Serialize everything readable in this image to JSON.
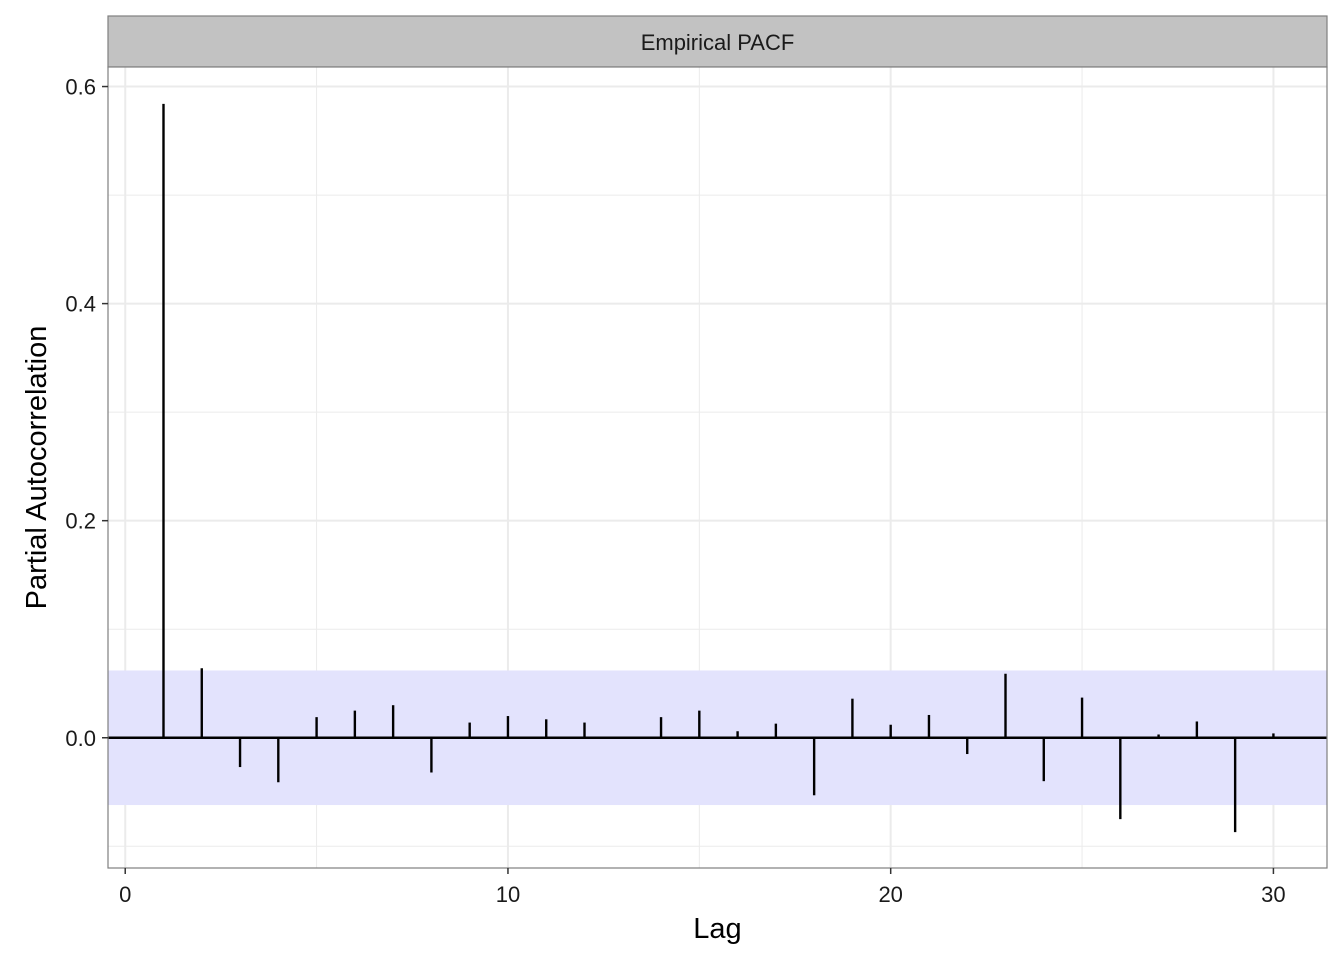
{
  "chart_data": {
    "type": "bar",
    "title": "Empirical PACF",
    "xlabel": "Lag",
    "ylabel": "Partial Autocorrelation",
    "xlim": [
      -0.45,
      31.4
    ],
    "ylim": [
      -0.12,
      0.618
    ],
    "xticks": [
      0,
      10,
      20,
      30
    ],
    "xtick_labels": [
      "0",
      "10",
      "20",
      "30"
    ],
    "yticks": [
      0.0,
      0.2,
      0.4,
      0.6
    ],
    "ytick_labels": [
      "0.0",
      "0.2",
      "0.4",
      "0.6"
    ],
    "grid": true,
    "confidence_band": [
      -0.062,
      0.062
    ],
    "lags": [
      1,
      2,
      3,
      4,
      5,
      6,
      7,
      8,
      9,
      10,
      11,
      12,
      13,
      14,
      15,
      16,
      17,
      18,
      19,
      20,
      21,
      22,
      23,
      24,
      25,
      26,
      27,
      28,
      29,
      30
    ],
    "values": [
      0.584,
      0.064,
      -0.027,
      -0.041,
      0.019,
      0.025,
      0.03,
      -0.032,
      0.014,
      0.02,
      0.017,
      0.014,
      0.0,
      0.019,
      0.025,
      0.006,
      0.013,
      -0.053,
      0.036,
      0.012,
      0.021,
      -0.015,
      0.059,
      -0.04,
      0.037,
      -0.075,
      0.003,
      0.015,
      -0.087,
      0.004
    ],
    "colors": {
      "bars": "#000000",
      "band": "#e3e3fd",
      "grid": "#ebebeb",
      "strip": "#c2c2c2",
      "border": "#7f7f7f"
    }
  }
}
